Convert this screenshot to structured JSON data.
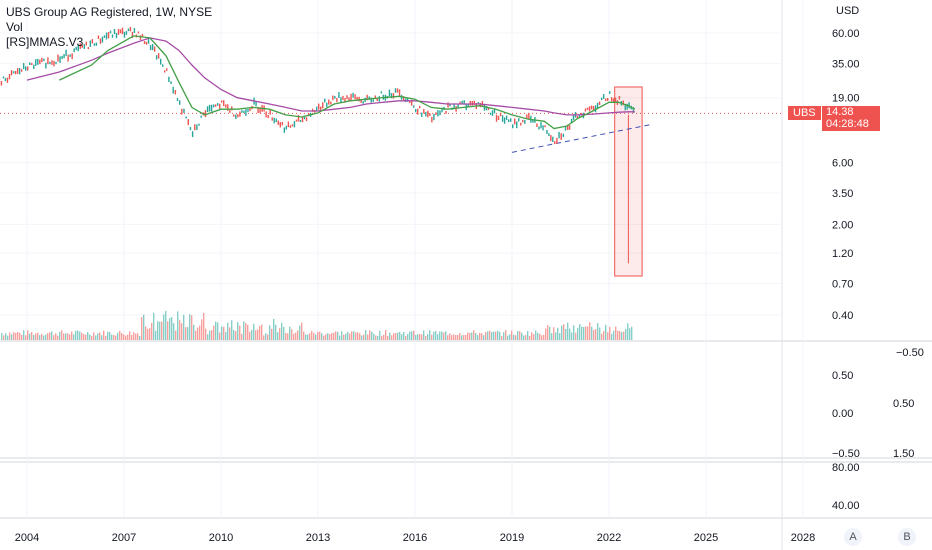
{
  "legend": {
    "title": "UBS Group AG Registered, 1W, NYSE",
    "vol": "Vol",
    "indicator": "[RS]MMAS.V3"
  },
  "currency": "USD",
  "price_tag": {
    "symbol": "UBS",
    "price": "14.38",
    "countdown": "04:28:48"
  },
  "pane_buttons": {
    "a": "A",
    "b": "B"
  },
  "colors": {
    "up": "#26a69a",
    "down": "#ef5350",
    "ma_slow": "#a64ca6",
    "ma_fast": "#43a047",
    "trend": "#3f51b5",
    "highlight": "#ef5350"
  },
  "chart_data": {
    "type": "line",
    "title": "UBS Group AG Registered, 1W, NYSE",
    "y_scale": "log",
    "ylim": [
      0.3,
      100
    ],
    "y_ticks": [
      "60.00",
      "35.00",
      "19.00",
      "6.00",
      "3.50",
      "2.00",
      "1.20",
      "0.70",
      "0.40"
    ],
    "x_ticks": [
      "2004",
      "2007",
      "2010",
      "2013",
      "2016",
      "2019",
      "2022",
      "2025",
      "2028"
    ],
    "x": [
      2003.0,
      2004.0,
      2005.0,
      2006.0,
      2006.5,
      2007.3,
      2007.8,
      2008.3,
      2008.7,
      2009.1,
      2009.5,
      2010.0,
      2010.5,
      2011.0,
      2011.5,
      2012.0,
      2012.5,
      2013.0,
      2013.5,
      2014.0,
      2014.5,
      2015.0,
      2015.5,
      2016.0,
      2016.5,
      2017.0,
      2017.5,
      2018.0,
      2018.5,
      2019.0,
      2019.5,
      2020.0,
      2020.3,
      2020.7,
      2021.0,
      2021.5,
      2022.0,
      2022.3,
      2022.6,
      2022.8
    ],
    "series": [
      {
        "values": [
          24,
          33,
          38,
          50,
          58,
          62,
          48,
          30,
          17,
          10,
          15,
          17,
          14,
          17,
          14,
          11,
          13,
          16,
          19,
          19,
          18,
          20,
          21,
          16,
          13,
          16,
          17,
          17,
          14,
          12,
          13,
          11,
          9,
          11,
          14,
          16,
          20,
          18,
          16,
          14.38
        ]
      },
      {
        "values": [
          null,
          26,
          30,
          37,
          42,
          50,
          55,
          52,
          44,
          34,
          27,
          22,
          19,
          18,
          17,
          16,
          15,
          15,
          15.5,
          16,
          17,
          17.5,
          18,
          18,
          17.5,
          17,
          17,
          17,
          16.5,
          16,
          15.5,
          15,
          14.5,
          14,
          14,
          14.2,
          14.5,
          14.7,
          14.8,
          14.8
        ]
      },
      {
        "values": [
          null,
          null,
          26,
          34,
          44,
          57,
          55,
          40,
          25,
          16,
          14,
          15.5,
          15.5,
          16,
          15.5,
          14,
          13.5,
          14.5,
          17,
          18,
          18.5,
          19,
          19.5,
          18.5,
          16,
          15.5,
          16,
          16.5,
          15.5,
          14,
          13,
          12.5,
          11,
          11.5,
          13,
          15,
          17.5,
          17.5,
          16.5,
          15.5
        ]
      }
    ],
    "annotations": {
      "current_price": 14.38,
      "highlight_range": [
        0.8,
        23
      ],
      "spike_low": 1.0
    }
  }
}
